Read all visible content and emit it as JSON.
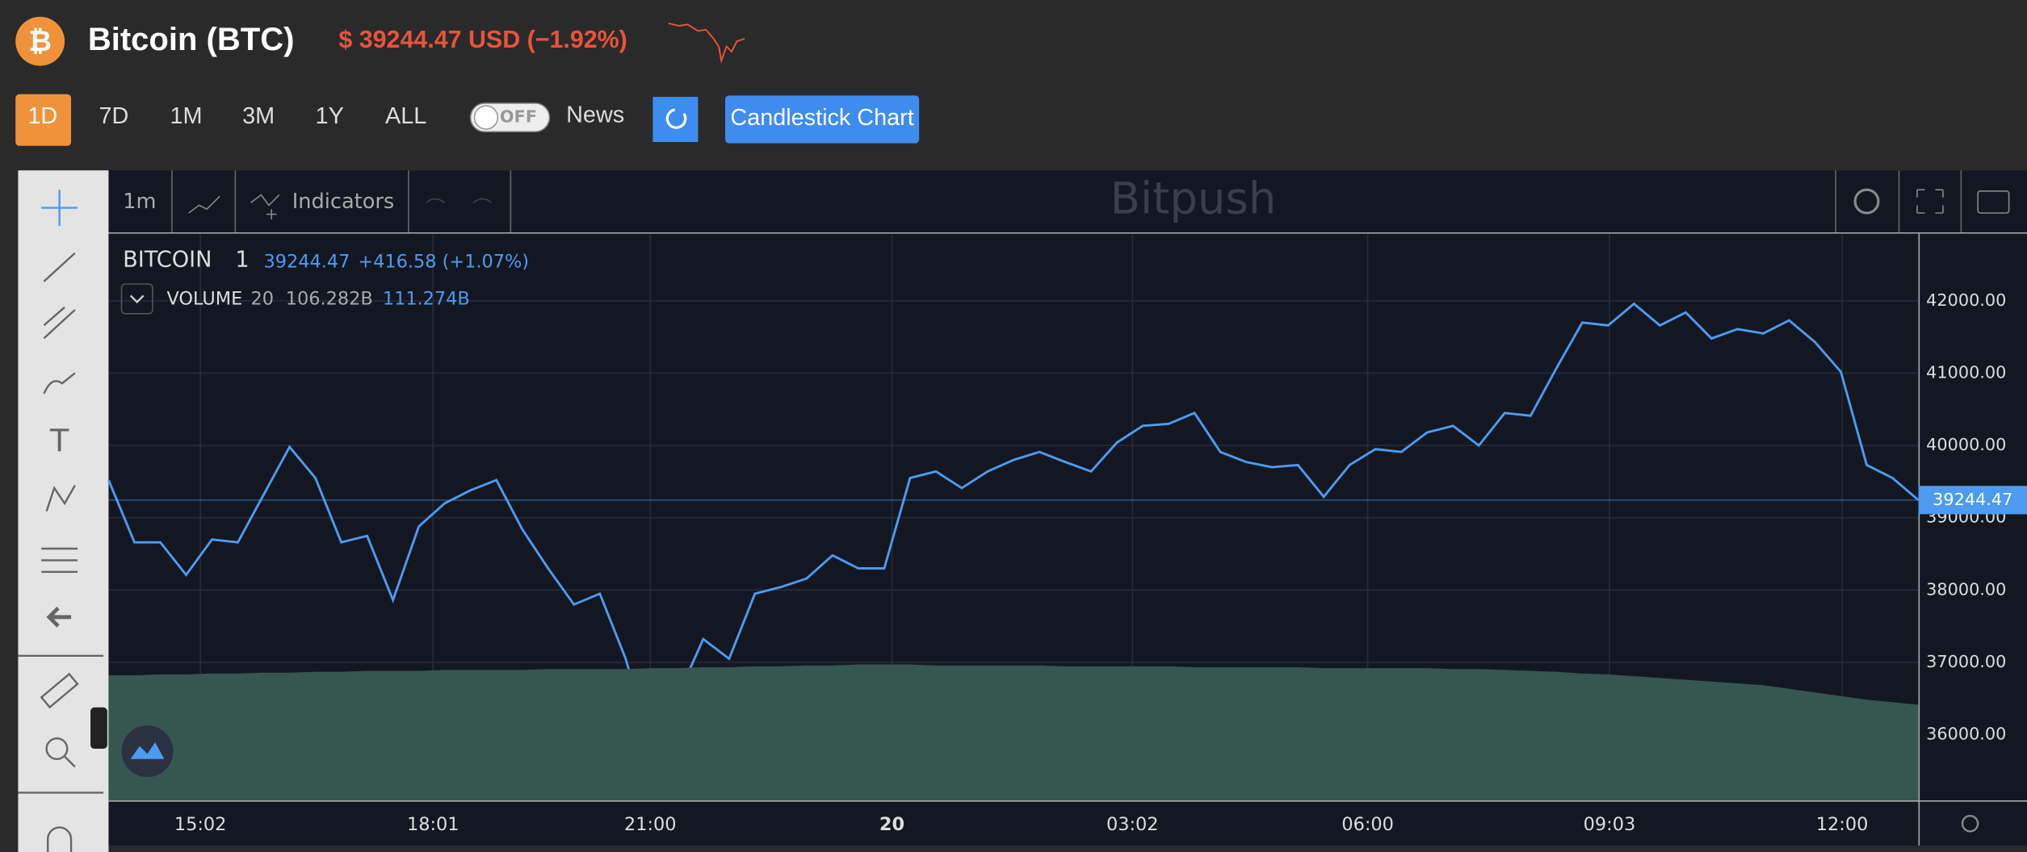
{
  "header": {
    "title": "Bitcoin (BTC)",
    "price": "$ 39244.47 USD (−1.92%)"
  },
  "controls": {
    "ranges": [
      "1D",
      "7D",
      "1M",
      "3M",
      "1Y",
      "ALL"
    ],
    "toggle": "OFF",
    "news": "News",
    "candlestick": "Candlestick Chart"
  },
  "toolbar": {
    "interval": "1m",
    "indicators": "Indicators",
    "watermark": "Bitpush"
  },
  "legend": {
    "symbol": "BITCOIN",
    "interval": "1",
    "price": "39244.47",
    "change": "+416.58 (+1.07%)",
    "volume": "VOLUME",
    "volume_length": "20",
    "volume_value": "106.282B",
    "volume_ma": "111.274B"
  },
  "chart_data": {
    "type": "line",
    "series": [
      {
        "name": "BITCOIN",
        "color": "#4d9bf0",
        "values": [
          39520,
          38660,
          38660,
          38210,
          38700,
          38660,
          39320,
          39980,
          39550,
          38660,
          38750,
          37860,
          38880,
          39200,
          39380,
          39520,
          38840,
          38300,
          37800,
          37950,
          37050,
          35800,
          36520,
          37320,
          37050,
          37950,
          38040,
          38160,
          38480,
          38300,
          38300,
          39550,
          39640,
          39410,
          39640,
          39800,
          39910,
          39770,
          39640,
          40040,
          40270,
          40300,
          40450,
          39910,
          39770,
          39700,
          39730,
          39290,
          39730,
          39950,
          39910,
          40180,
          40270,
          40000,
          40450,
          40410,
          41070,
          41700,
          41660,
          41960,
          41660,
          41840,
          41480,
          41610,
          41550,
          41730,
          41430,
          41020,
          39730,
          39550,
          39244.47
        ]
      },
      {
        "name": "VOLUME",
        "color": "#36574f",
        "axis": "y2",
        "values": [
          139,
          139,
          140,
          140,
          141,
          141,
          142,
          142,
          143,
          143,
          144,
          144,
          144,
          145,
          145,
          145,
          145,
          146,
          146,
          146,
          146,
          147,
          147,
          148,
          148,
          149,
          149,
          150,
          150,
          151,
          151,
          151,
          150,
          150,
          150,
          150,
          150,
          149,
          149,
          149,
          149,
          149,
          148,
          148,
          148,
          148,
          148,
          147,
          147,
          147,
          147,
          147,
          146,
          146,
          145,
          144,
          143,
          141,
          140,
          138,
          136,
          134,
          132,
          130,
          128,
          124,
          120,
          116,
          112,
          109,
          106.282
        ]
      }
    ],
    "xlim": [
      0,
      70
    ],
    "xticks": [
      {
        "value": 3.55,
        "label": "15:02"
      },
      {
        "value": 12.55,
        "label": "18:01"
      },
      {
        "value": 20.95,
        "label": "21:00"
      },
      {
        "value": 30.3,
        "label": "20"
      },
      {
        "value": 39.6,
        "label": "03:02"
      },
      {
        "value": 48.7,
        "label": "06:00"
      },
      {
        "value": 58.05,
        "label": "09:03"
      },
      {
        "value": 67.05,
        "label": "12:00"
      }
    ],
    "ylim": [
      35090,
      42930
    ],
    "yticks": [
      {
        "value": 36000,
        "label": "36000.00"
      },
      {
        "value": 37000,
        "label": "37000.00"
      },
      {
        "value": 38000,
        "label": "38000.00"
      },
      {
        "value": 39000,
        "label": "39000.00"
      },
      {
        "value": 40000,
        "label": "40000.00"
      },
      {
        "value": 41000,
        "label": "41000.00"
      },
      {
        "value": 42000,
        "label": "42000.00"
      }
    ],
    "y2lim": [
      0,
      630
    ],
    "grid": true
  }
}
